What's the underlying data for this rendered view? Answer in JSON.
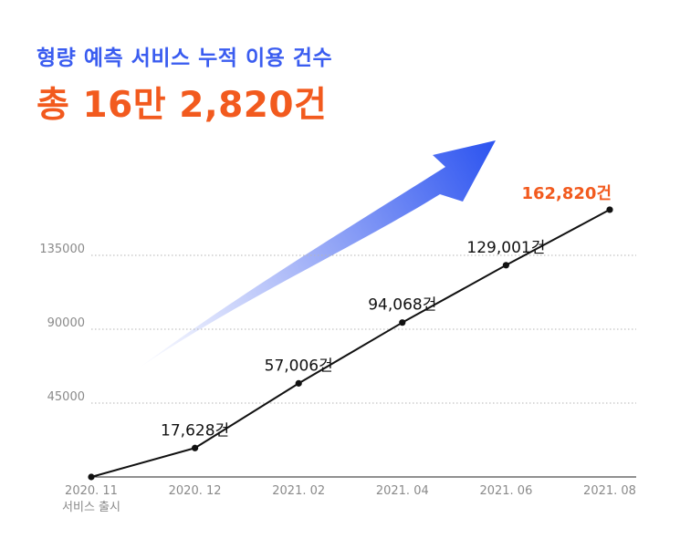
{
  "header": {
    "subtitle": "형량 예측 서비스 누적 이용 건수",
    "headline": "총 16만 2,820건"
  },
  "colors": {
    "accent_blue": "#3a5cf0",
    "accent_orange": "#f25a1e",
    "line": "#111111",
    "grid": "#b5b5b5",
    "tick_text": "#8a8a8a"
  },
  "chart_data": {
    "type": "line",
    "title": "형량 예측 서비스 누적 이용 건수",
    "xlabel": "",
    "ylabel": "",
    "categories": [
      "2020. 11",
      "2020. 12",
      "2021. 02",
      "2021. 04",
      "2021. 06",
      "2021. 08"
    ],
    "category_sublabels": [
      "서비스 출시",
      "",
      "",
      "",
      "",
      ""
    ],
    "series": [
      {
        "values": [
          0,
          17628,
          57006,
          94068,
          129001,
          162820
        ],
        "data_labels": [
          "",
          "17,628건",
          "57,006건",
          "94,068건",
          "129,001건",
          "162,820건"
        ]
      }
    ],
    "y_ticks": [
      45000,
      90000,
      135000
    ],
    "ylim": [
      0,
      180000
    ],
    "grid": "horizontal dotted",
    "highlight_last_label": true
  }
}
